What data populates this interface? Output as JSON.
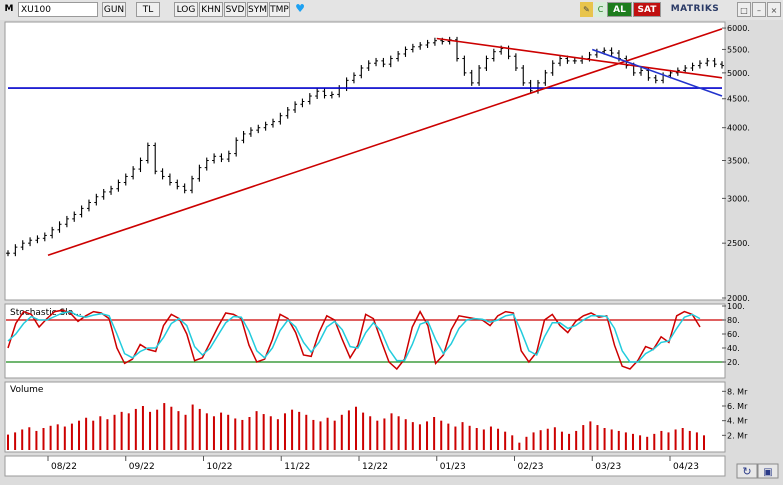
{
  "toolbar": {
    "menu_label": "M",
    "symbol": "XU100",
    "buttons": [
      "GUN",
      "TL",
      "LOG",
      "KHN",
      "SVD",
      "SYM",
      "TMP"
    ],
    "buy_label": "AL",
    "sell_label": "SAT",
    "brand": "MATRIKS"
  },
  "chart_data": [
    {
      "type": "line",
      "title": "",
      "style": "ohlc-bars",
      "scale": "log",
      "color": "#000000",
      "y_ticks": [
        2000,
        2500,
        3000,
        3500,
        4000,
        4500,
        5000,
        5500,
        6000
      ],
      "ylim": [
        2000,
        6100
      ],
      "x_ticks": [
        "08/22",
        "09/22",
        "10/22",
        "11/22",
        "12/22",
        "01/23",
        "02/23",
        "03/23",
        "04/23"
      ],
      "closes": [
        2400,
        2460,
        2500,
        2530,
        2550,
        2580,
        2640,
        2700,
        2760,
        2810,
        2880,
        2950,
        3020,
        3080,
        3120,
        3200,
        3280,
        3380,
        3500,
        3720,
        3350,
        3280,
        3200,
        3150,
        3100,
        3250,
        3400,
        3500,
        3560,
        3520,
        3600,
        3800,
        3900,
        3960,
        4000,
        4050,
        4100,
        4200,
        4300,
        4400,
        4450,
        4550,
        4640,
        4560,
        4580,
        4700,
        4850,
        4950,
        5100,
        5200,
        5250,
        5180,
        5300,
        5400,
        5500,
        5560,
        5600,
        5650,
        5700,
        5680,
        5720,
        5300,
        5000,
        4800,
        5100,
        5300,
        5450,
        5520,
        5350,
        5100,
        4800,
        4650,
        4800,
        5000,
        5200,
        5300,
        5250,
        5250,
        5300,
        5380,
        5450,
        5480,
        5420,
        5300,
        5150,
        5000,
        5050,
        4900,
        4850,
        4950,
        5000,
        5050,
        5100,
        5150,
        5200,
        5250,
        5180,
        5150
      ],
      "guides": [
        {
          "kind": "support",
          "color": "#0000cc",
          "points": [
            [
              "start",
              4700
            ],
            [
              "end",
              4700
            ]
          ]
        },
        {
          "kind": "uptrend",
          "color": "#cc0000",
          "points": [
            [
              "08/22",
              2380
            ],
            [
              "end",
              5980
            ]
          ]
        },
        {
          "kind": "downtrend",
          "color": "#cc0000",
          "points": [
            [
              "01/23",
              5750
            ],
            [
              "end",
              4900
            ]
          ]
        },
        {
          "kind": "downtrend",
          "color": "#2233cc",
          "dashed_tail": true,
          "points": [
            [
              "03/23",
              5500
            ],
            [
              "end",
              4550
            ]
          ]
        }
      ]
    },
    {
      "type": "line",
      "title": "Stochastic Slo...",
      "ylim": [
        0,
        100
      ],
      "y_ticks": [
        20,
        40,
        60,
        80,
        100
      ],
      "bands": [
        {
          "value": 80,
          "color": "#cc0000"
        },
        {
          "value": 20,
          "color": "#1a8a1a"
        }
      ],
      "series": [
        {
          "color": "#cc0000",
          "values": [
            40,
            75,
            92,
            88,
            70,
            82,
            92,
            94,
            90,
            78,
            86,
            92,
            90,
            82,
            40,
            18,
            24,
            45,
            38,
            35,
            72,
            88,
            82,
            60,
            22,
            26,
            48,
            70,
            90,
            88,
            82,
            44,
            20,
            24,
            52,
            88,
            82,
            62,
            30,
            28,
            62,
            86,
            80,
            52,
            26,
            44,
            88,
            82,
            50,
            20,
            10,
            24,
            70,
            92,
            72,
            18,
            30,
            66,
            86,
            84,
            82,
            80,
            72,
            86,
            92,
            90,
            36,
            20,
            34,
            80,
            88,
            72,
            62,
            78,
            86,
            90,
            84,
            86,
            44,
            14,
            10,
            22,
            42,
            38,
            56,
            48,
            86,
            92,
            88,
            70
          ]
        },
        {
          "color": "#22ccdd",
          "values": [
            50,
            60,
            75,
            85,
            80,
            80,
            85,
            90,
            92,
            86,
            84,
            87,
            89,
            86,
            60,
            32,
            26,
            35,
            40,
            40,
            55,
            75,
            82,
            72,
            42,
            30,
            40,
            58,
            76,
            85,
            84,
            64,
            36,
            26,
            40,
            65,
            80,
            70,
            48,
            34,
            48,
            70,
            78,
            66,
            42,
            40,
            62,
            76,
            64,
            38,
            22,
            22,
            45,
            74,
            78,
            52,
            32,
            46,
            68,
            80,
            82,
            81,
            77,
            80,
            86,
            88,
            64,
            36,
            30,
            56,
            76,
            76,
            68,
            72,
            80,
            86,
            86,
            85,
            68,
            36,
            20,
            20,
            32,
            38,
            48,
            50,
            68,
            84,
            88,
            82
          ]
        }
      ]
    },
    {
      "type": "bar",
      "title": "Volume",
      "color": "#cc0000",
      "ylim": [
        0,
        9
      ],
      "y_ticks": [
        2,
        4,
        6,
        8
      ],
      "y_tick_suffix": ". Mr",
      "values": [
        2.1,
        2.4,
        2.8,
        3.1,
        2.6,
        3.0,
        3.3,
        3.5,
        3.2,
        3.6,
        4.0,
        4.4,
        4.0,
        4.6,
        4.2,
        4.8,
        5.2,
        5.0,
        5.6,
        6.0,
        5.2,
        5.5,
        6.4,
        5.9,
        5.3,
        4.8,
        6.2,
        5.6,
        5.0,
        4.6,
        5.1,
        4.8,
        4.3,
        4.1,
        4.5,
        5.3,
        4.9,
        4.6,
        4.2,
        5.0,
        5.5,
        5.2,
        4.8,
        4.1,
        3.9,
        4.4,
        4.0,
        4.8,
        5.4,
        5.9,
        5.1,
        4.6,
        4.0,
        4.3,
        5.0,
        4.6,
        4.2,
        3.8,
        3.5,
        3.9,
        4.5,
        4.0,
        3.6,
        3.2,
        3.8,
        3.3,
        3.0,
        2.8,
        3.2,
        2.9,
        2.5,
        2.0,
        1.0,
        1.8,
        2.4,
        2.7,
        2.9,
        3.1,
        2.5,
        2.2,
        2.6,
        3.4,
        3.9,
        3.4,
        3.0,
        2.8,
        2.6,
        2.4,
        2.2,
        2.0,
        1.8,
        2.2,
        2.6,
        2.4,
        2.8,
        3.0,
        2.6,
        2.4,
        2.0
      ]
    }
  ]
}
